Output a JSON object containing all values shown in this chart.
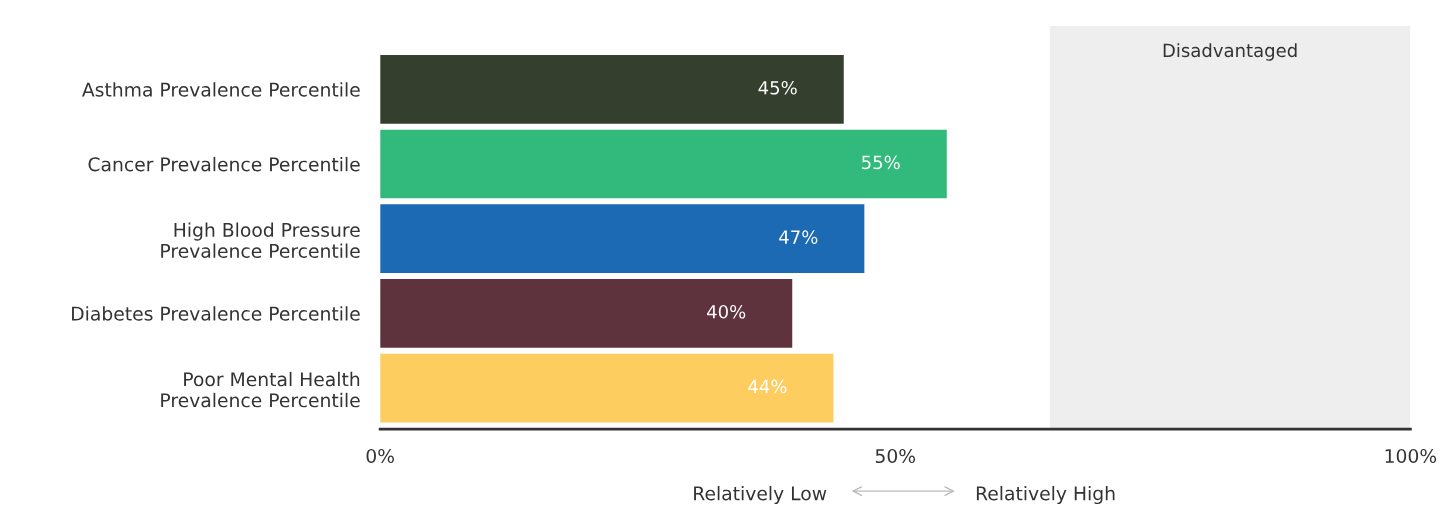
{
  "chart_data": {
    "type": "bar",
    "orientation": "horizontal",
    "categories": [
      "Asthma Prevalence Percentile",
      "Cancer Prevalence Percentile",
      "High Blood Pressure\nPrevalence Percentile",
      "Diabetes Prevalence Percentile",
      "Poor Mental Health\nPrevalence Percentile"
    ],
    "values": [
      45,
      55,
      47,
      40,
      44
    ],
    "colors": [
      "#353f2e",
      "#32ba7c",
      "#1c69b4",
      "#5e333e",
      "#fdcd60"
    ],
    "value_labels": [
      "45%",
      "55%",
      "47%",
      "40%",
      "44%"
    ],
    "xlim": [
      0,
      100
    ],
    "xticks": [
      {
        "value": 0,
        "label": "0%"
      },
      {
        "value": 50,
        "label": "50%"
      },
      {
        "value": 100,
        "label": "100%"
      }
    ],
    "bands": [
      {
        "axis": "x",
        "from": 65,
        "to": 100,
        "label": "Disadvantaged",
        "color": "#eeeeee"
      }
    ],
    "annotations": [
      "Relatively Low",
      "Relatively High"
    ],
    "grid": false,
    "legend": false
  }
}
